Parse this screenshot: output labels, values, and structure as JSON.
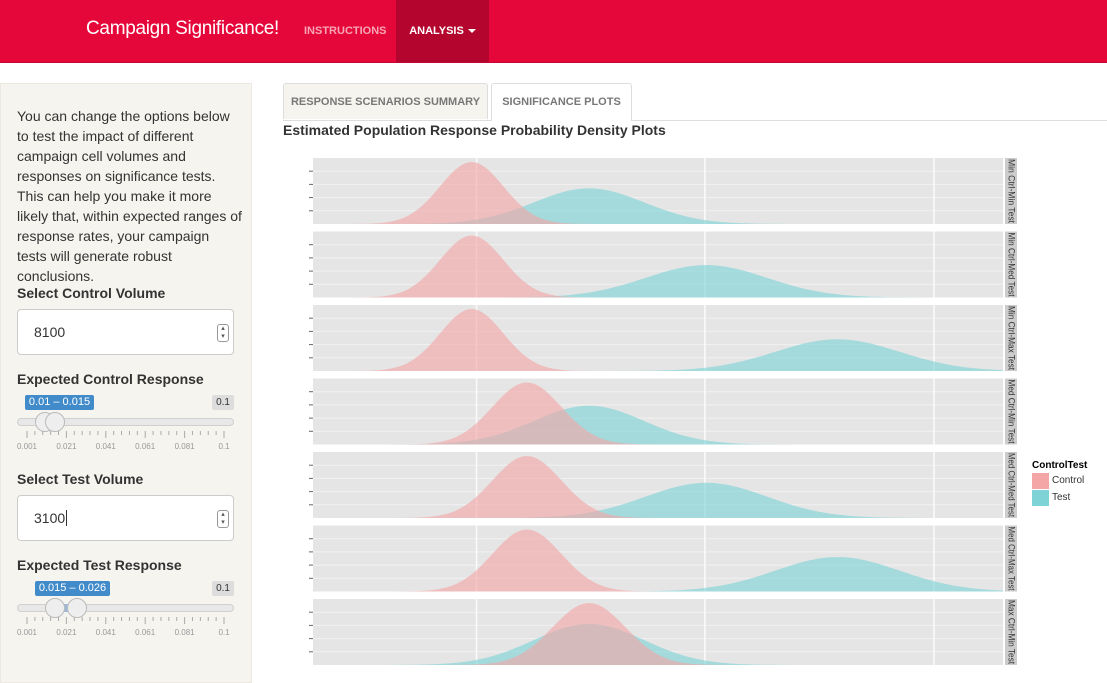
{
  "app": {
    "brand": "Campaign Significance!",
    "nav": {
      "instructions": "INSTRUCTIONS",
      "analysis": "ANALYSIS"
    }
  },
  "sidebar": {
    "intro": "You can change the options below to test the impact of different campaign cell volumes and responses on significance tests. This can help you make it more likely that, within expected ranges of response rates, your campaign tests will generate robust conclusions.",
    "control_volume": {
      "label": "Select Control Volume",
      "value": "8100"
    },
    "control_response": {
      "label": "Expected Control Response",
      "range_label": "0.01 – 0.015",
      "max_label": "0.1",
      "min": 0.001,
      "max": 0.1,
      "low": 0.01,
      "high": 0.015,
      "grid": [
        "0.001",
        "0.021",
        "0.041",
        "0.061",
        "0.081",
        "0.1"
      ]
    },
    "test_volume": {
      "label": "Select Test Volume",
      "value": "3100"
    },
    "test_response": {
      "label": "Expected Test Response",
      "range_label": "0.015 – 0.026",
      "max_label": "0.1",
      "min": 0.001,
      "max": 0.1,
      "low": 0.015,
      "high": 0.026,
      "grid": [
        "0.001",
        "0.021",
        "0.041",
        "0.061",
        "0.081",
        "0.1"
      ]
    }
  },
  "tabs": {
    "summary": "RESPONSE SCENARIOS SUMMARY",
    "plots": "SIGNIFICANCE PLOTS"
  },
  "plot": {
    "title": "Estimated Population Response Probability Density Plots"
  },
  "chart_data": {
    "type": "area",
    "title": "Estimated Population Response Probability Density Plots",
    "x_relative_units": "fraction of panel width (axis ticks unlabeled in view)",
    "series": [
      {
        "name": "Control",
        "color": "#f4a6a6"
      },
      {
        "name": "Test",
        "color": "#7dd3d6"
      }
    ],
    "legend": {
      "title": "ControlTest",
      "position": "right"
    },
    "facets": [
      {
        "strip": "Min Ctrl-Min Test",
        "control": {
          "mean": 0.23,
          "sd": 0.046
        },
        "test": {
          "mean": 0.4,
          "sd": 0.08
        }
      },
      {
        "strip": "Min Ctrl-Med Test",
        "control": {
          "mean": 0.23,
          "sd": 0.046
        },
        "test": {
          "mean": 0.57,
          "sd": 0.088
        }
      },
      {
        "strip": "Min Ctrl-Max Test",
        "control": {
          "mean": 0.23,
          "sd": 0.046
        },
        "test": {
          "mean": 0.76,
          "sd": 0.09
        }
      },
      {
        "strip": "Med Ctrl-Min Test",
        "control": {
          "mean": 0.31,
          "sd": 0.05
        },
        "test": {
          "mean": 0.4,
          "sd": 0.08
        }
      },
      {
        "strip": "Med Ctrl-Med Test",
        "control": {
          "mean": 0.31,
          "sd": 0.05
        },
        "test": {
          "mean": 0.57,
          "sd": 0.088
        }
      },
      {
        "strip": "Med Ctrl-Max Test",
        "control": {
          "mean": 0.31,
          "sd": 0.05
        },
        "test": {
          "mean": 0.76,
          "sd": 0.09
        }
      },
      {
        "strip": "Max Ctrl-Min Test",
        "control": {
          "mean": 0.4,
          "sd": 0.053
        },
        "test": {
          "mean": 0.4,
          "sd": 0.08
        }
      }
    ]
  }
}
